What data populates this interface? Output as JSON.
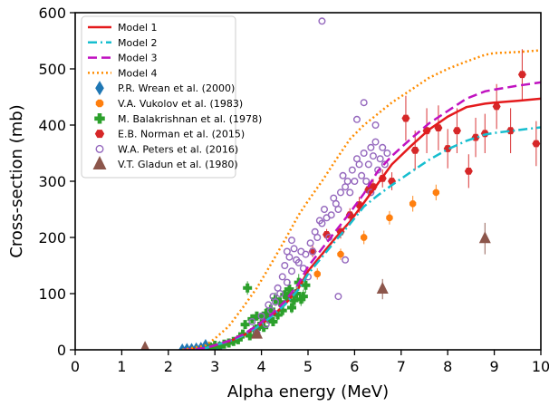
{
  "chart_data": {
    "type": "scatter",
    "title": "",
    "xlabel": "Alpha energy (MeV)",
    "ylabel": "Cross-section (mb)",
    "xlim": [
      0,
      10
    ],
    "ylim": [
      0,
      600
    ],
    "xticks": [
      0,
      1,
      2,
      3,
      4,
      5,
      6,
      7,
      8,
      9,
      10
    ],
    "yticks": [
      0,
      100,
      200,
      300,
      400,
      500,
      600
    ],
    "grid": false,
    "legend_position": "top-left",
    "lines": [
      {
        "name": "Model 1",
        "color": "#e41a1c",
        "dash": "solid",
        "x": [
          2.3,
          2.8,
          3.0,
          3.3,
          3.6,
          3.9,
          4.2,
          4.5,
          4.8,
          5.0,
          5.3,
          5.6,
          5.9,
          6.2,
          6.5,
          6.8,
          7.2,
          7.6,
          8.0,
          8.4,
          8.8,
          9.0,
          9.5,
          10.0
        ],
        "y": [
          0,
          3,
          8,
          15,
          25,
          40,
          58,
          80,
          110,
          140,
          170,
          200,
          228,
          262,
          296,
          330,
          362,
          392,
          415,
          432,
          438,
          440,
          443,
          447
        ]
      },
      {
        "name": "Model 2",
        "color": "#17becf",
        "dash": "dashdot",
        "x": [
          2.3,
          2.8,
          3.0,
          3.3,
          3.6,
          3.9,
          4.2,
          4.5,
          4.8,
          5.0,
          5.3,
          5.6,
          5.9,
          6.2,
          6.5,
          6.8,
          7.2,
          7.6,
          8.0,
          8.4,
          8.8,
          9.0,
          9.5,
          10.0
        ],
        "y": [
          0,
          3,
          8,
          15,
          25,
          40,
          58,
          80,
          108,
          135,
          165,
          195,
          224,
          255,
          275,
          293,
          316,
          338,
          357,
          372,
          383,
          386,
          391,
          396
        ]
      },
      {
        "name": "Model 3",
        "color": "#c012c0",
        "dash": "dashed",
        "x": [
          2.3,
          2.8,
          3.0,
          3.3,
          3.6,
          3.9,
          4.2,
          4.5,
          4.8,
          5.0,
          5.3,
          5.6,
          5.9,
          6.2,
          6.5,
          6.8,
          7.2,
          7.6,
          8.0,
          8.4,
          8.8,
          9.0,
          9.5,
          10.0
        ],
        "y": [
          0,
          3,
          8,
          16,
          27,
          43,
          62,
          86,
          118,
          148,
          180,
          212,
          244,
          278,
          318,
          345,
          375,
          403,
          425,
          447,
          460,
          463,
          470,
          476
        ]
      },
      {
        "name": "Model 4",
        "color": "#ff8c00",
        "dash": "dotted",
        "x": [
          2.3,
          2.8,
          3.0,
          3.3,
          3.6,
          3.9,
          4.2,
          4.5,
          4.8,
          5.0,
          5.3,
          5.6,
          5.9,
          6.2,
          6.5,
          6.8,
          7.2,
          7.6,
          8.0,
          8.4,
          8.8,
          9.0,
          9.5,
          10.0
        ],
        "y": [
          0,
          8,
          20,
          42,
          75,
          110,
          152,
          195,
          240,
          265,
          300,
          338,
          375,
          400,
          420,
          440,
          462,
          484,
          500,
          513,
          525,
          528,
          530,
          533
        ]
      }
    ],
    "series": [
      {
        "name": "P.R. Wrean et al. (2000)",
        "color": "#1f77b4",
        "marker": "diamond",
        "x": [
          2.3,
          2.4,
          2.5,
          2.6,
          2.7,
          2.8,
          2.9,
          3.0,
          3.1
        ],
        "y": [
          0,
          1,
          1,
          2,
          3,
          8,
          3,
          4,
          5
        ]
      },
      {
        "name": "V.A. Vukolov et al. (1983)",
        "color": "#ff7f0e",
        "marker": "octagon",
        "x": [
          5.2,
          5.7,
          6.2,
          6.75,
          7.25,
          7.75
        ],
        "y": [
          135,
          170,
          200,
          235,
          260,
          280
        ],
        "yerr": [
          10,
          10,
          12,
          12,
          14,
          14
        ]
      },
      {
        "name": "M. Balakrishnan et al. (1978)",
        "color": "#2ca02c",
        "marker": "plus",
        "x": [
          2.9,
          3.0,
          3.1,
          3.2,
          3.3,
          3.4,
          3.5,
          3.6,
          3.65,
          3.7,
          3.75,
          3.8,
          3.85,
          3.9,
          3.95,
          4.0,
          4.05,
          4.1,
          4.15,
          4.2,
          4.25,
          4.3,
          4.35,
          4.4,
          4.45,
          4.5,
          4.55,
          4.6,
          4.65,
          4.7,
          4.75,
          4.8,
          4.85,
          4.9,
          4.95
        ],
        "y": [
          5,
          8,
          6,
          10,
          12,
          15,
          18,
          28,
          45,
          110,
          25,
          55,
          35,
          60,
          42,
          58,
          40,
          65,
          55,
          72,
          50,
          90,
          62,
          85,
          70,
          98,
          95,
          108,
          75,
          88,
          100,
          120,
          90,
          95,
          115
        ],
        "yerr": [
          2,
          2,
          2,
          3,
          3,
          4,
          4,
          5,
          6,
          12,
          5,
          8,
          6,
          8,
          6,
          8,
          6,
          9,
          8,
          10,
          8,
          12,
          9,
          11,
          10,
          13,
          12,
          14,
          10,
          12,
          13,
          15,
          12,
          12,
          14
        ]
      },
      {
        "name": "E.B. Norman et al. (2015)",
        "color": "#d62728",
        "marker": "star",
        "x": [
          5.1,
          5.4,
          5.7,
          5.9,
          6.1,
          6.3,
          6.4,
          6.6,
          6.8,
          7.1,
          7.3,
          7.55,
          7.8,
          8.0,
          8.2,
          8.45,
          8.6,
          8.8,
          9.05,
          9.35,
          9.6,
          9.9
        ],
        "y": [
          175,
          205,
          210,
          240,
          258,
          285,
          290,
          305,
          300,
          412,
          355,
          390,
          395,
          358,
          390,
          318,
          378,
          385,
          433,
          390,
          490,
          367
        ],
        "yerr": [
          10,
          10,
          12,
          12,
          14,
          14,
          14,
          16,
          16,
          40,
          35,
          40,
          40,
          35,
          40,
          30,
          35,
          35,
          40,
          40,
          45,
          40
        ]
      },
      {
        "name": "W.A. Peters et al. (2016)",
        "color": "#9467bd",
        "marker": "circle-open",
        "x": [
          3.8,
          3.9,
          4.0,
          4.1,
          4.15,
          4.2,
          4.25,
          4.3,
          4.35,
          4.4,
          4.45,
          4.5,
          4.55,
          4.6,
          4.65,
          4.7,
          4.75,
          4.8,
          4.85,
          4.9,
          4.95,
          5.0,
          5.05,
          5.1,
          5.15,
          5.2,
          5.25,
          5.3,
          5.35,
          5.4,
          5.45,
          5.5,
          5.55,
          5.6,
          5.65,
          5.7,
          5.75,
          5.8,
          5.85,
          5.9,
          5.95,
          6.0,
          6.05,
          6.1,
          6.15,
          6.2,
          6.25,
          6.3,
          6.35,
          6.4,
          6.45,
          6.5,
          6.55,
          6.6,
          6.65,
          6.7,
          5.3,
          5.65,
          6.05,
          6.2,
          6.45,
          5.8,
          6.35,
          4.55,
          4.65
        ],
        "y": [
          50,
          30,
          60,
          45,
          80,
          70,
          95,
          85,
          110,
          100,
          130,
          150,
          120,
          165,
          140,
          180,
          160,
          155,
          175,
          145,
          170,
          130,
          190,
          175,
          210,
          200,
          230,
          225,
          250,
          235,
          200,
          240,
          270,
          260,
          250,
          280,
          310,
          290,
          300,
          280,
          320,
          300,
          340,
          330,
          310,
          350,
          300,
          330,
          360,
          345,
          370,
          320,
          340,
          360,
          330,
          350,
          585,
          95,
          410,
          440,
          400,
          160,
          280,
          175,
          195
        ]
      },
      {
        "name": "V.T. Gladun et al. (1980)",
        "color": "#8c564b",
        "marker": "triangle",
        "x": [
          1.5,
          3.9,
          6.6,
          8.8
        ],
        "y": [
          3,
          28,
          108,
          198
        ],
        "yerr": [
          3,
          5,
          18,
          28
        ]
      }
    ]
  }
}
